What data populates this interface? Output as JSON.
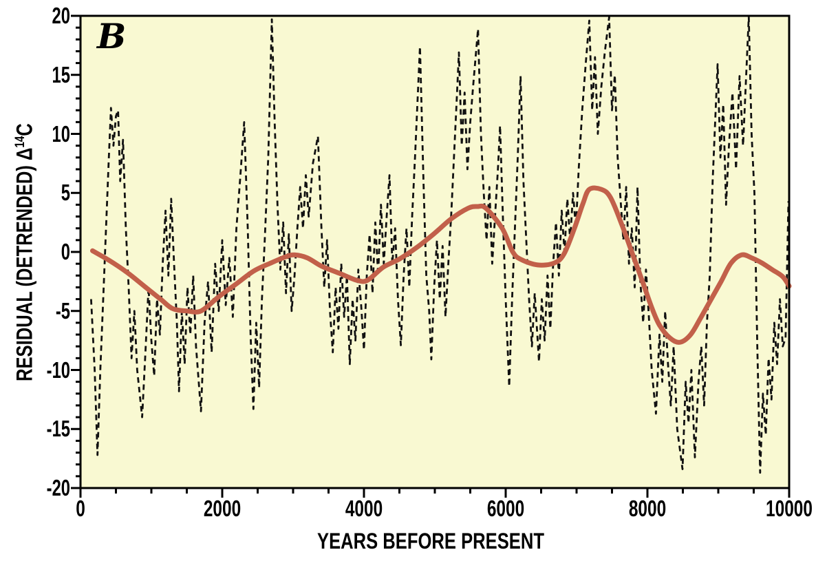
{
  "panel_label": "B",
  "axes": {
    "x_title": "YEARS BEFORE PRESENT",
    "y_title_prefix": "RESIDUAL (DETRENDED) ",
    "y_title_delta": "Δ",
    "y_title_sup": "14",
    "y_title_suffix": "C",
    "x_tick_labels": [
      "0",
      "2000",
      "4000",
      "6000",
      "8000",
      "10000"
    ],
    "y_tick_labels": [
      "-20",
      "-15",
      "-10",
      "-5",
      "0",
      "5",
      "10",
      "15",
      "20"
    ]
  },
  "colors": {
    "plot_background": "#f9f9d2",
    "frame": "#000000",
    "dashed_series": "#111111",
    "trend_series": "#c2604a",
    "text": "#000000",
    "page_background": "#ffffff"
  },
  "chart_data": {
    "type": "line",
    "title": "",
    "xlabel": "YEARS BEFORE PRESENT",
    "ylabel": "RESIDUAL (DETRENDED) Δ14C",
    "xlim": [
      0,
      10000
    ],
    "ylim": [
      -20,
      20
    ],
    "x_major_step": 2000,
    "x_minor_step": 500,
    "y_major_step": 5,
    "y_minor_step": 1,
    "grid": false,
    "legend": "none",
    "series": [
      {
        "name": "residual detrended Delta-14C (dashed)",
        "style": "dashed",
        "color": "#111111",
        "points": [
          [
            150,
            -4
          ],
          [
            200,
            -10
          ],
          [
            240,
            -17.2
          ],
          [
            280,
            -10
          ],
          [
            320,
            -4
          ],
          [
            360,
            2
          ],
          [
            400,
            8
          ],
          [
            430,
            12.2
          ],
          [
            465,
            9
          ],
          [
            500,
            11.5
          ],
          [
            530,
            12
          ],
          [
            560,
            6
          ],
          [
            600,
            9.5
          ],
          [
            640,
            2
          ],
          [
            680,
            -3
          ],
          [
            720,
            -9
          ],
          [
            760,
            -5
          ],
          [
            800,
            -10
          ],
          [
            870,
            -14
          ],
          [
            920,
            -8
          ],
          [
            960,
            -3
          ],
          [
            1000,
            -7.5
          ],
          [
            1040,
            -10.5
          ],
          [
            1080,
            -4
          ],
          [
            1120,
            -7
          ],
          [
            1160,
            -1
          ],
          [
            1200,
            3.5
          ],
          [
            1240,
            -2
          ],
          [
            1280,
            4.5
          ],
          [
            1320,
            -1
          ],
          [
            1360,
            -6
          ],
          [
            1390,
            -11.8
          ],
          [
            1430,
            -5
          ],
          [
            1470,
            -9.5
          ],
          [
            1510,
            -3
          ],
          [
            1550,
            -7
          ],
          [
            1590,
            -2
          ],
          [
            1630,
            -8
          ],
          [
            1700,
            -13.5
          ],
          [
            1750,
            -6
          ],
          [
            1800,
            -2.5
          ],
          [
            1850,
            -8.5
          ],
          [
            1900,
            -1
          ],
          [
            1950,
            -5
          ],
          [
            2000,
            1
          ],
          [
            2050,
            -4.5
          ],
          [
            2100,
            -0.5
          ],
          [
            2150,
            -5.5
          ],
          [
            2200,
            2
          ],
          [
            2250,
            6
          ],
          [
            2310,
            11
          ],
          [
            2360,
            2
          ],
          [
            2400,
            -7
          ],
          [
            2440,
            -13.3
          ],
          [
            2480,
            -6
          ],
          [
            2520,
            -11.5
          ],
          [
            2560,
            -4
          ],
          [
            2600,
            1
          ],
          [
            2650,
            8
          ],
          [
            2700,
            19.7
          ],
          [
            2740,
            11
          ],
          [
            2780,
            4
          ],
          [
            2820,
            -1.5
          ],
          [
            2860,
            2.5
          ],
          [
            2900,
            -3.5
          ],
          [
            2940,
            1.5
          ],
          [
            2980,
            -5
          ],
          [
            3020,
            -2
          ],
          [
            3060,
            2
          ],
          [
            3100,
            5.5
          ],
          [
            3140,
            2
          ],
          [
            3180,
            6.5
          ],
          [
            3220,
            3
          ],
          [
            3280,
            7.5
          ],
          [
            3350,
            9.8
          ],
          [
            3400,
            2
          ],
          [
            3440,
            -3
          ],
          [
            3480,
            1
          ],
          [
            3520,
            -5
          ],
          [
            3560,
            -8.5
          ],
          [
            3600,
            -3
          ],
          [
            3640,
            -6.5
          ],
          [
            3680,
            -1
          ],
          [
            3720,
            -5.5
          ],
          [
            3760,
            -2
          ],
          [
            3800,
            -9.5
          ],
          [
            3840,
            -4
          ],
          [
            3880,
            -7.5
          ],
          [
            3920,
            -1.5
          ],
          [
            3960,
            -4.5
          ],
          [
            4000,
            -8.3
          ],
          [
            4040,
            -2
          ],
          [
            4080,
            1.5
          ],
          [
            4120,
            -3.5
          ],
          [
            4160,
            2.5
          ],
          [
            4200,
            -2
          ],
          [
            4240,
            4
          ],
          [
            4280,
            -1
          ],
          [
            4320,
            3
          ],
          [
            4360,
            6.5
          ],
          [
            4400,
            -1
          ],
          [
            4440,
            2
          ],
          [
            4480,
            -4
          ],
          [
            4520,
            -7.9
          ],
          [
            4560,
            -2
          ],
          [
            4600,
            2
          ],
          [
            4640,
            -3
          ],
          [
            4680,
            3
          ],
          [
            4720,
            8
          ],
          [
            4790,
            17.4
          ],
          [
            4840,
            6
          ],
          [
            4880,
            -2
          ],
          [
            4920,
            -5
          ],
          [
            4950,
            -9.1
          ],
          [
            4990,
            -3
          ],
          [
            5030,
            1
          ],
          [
            5070,
            -4
          ],
          [
            5110,
            0.5
          ],
          [
            5150,
            -5.5
          ],
          [
            5190,
            -1
          ],
          [
            5230,
            3
          ],
          [
            5270,
            8
          ],
          [
            5310,
            13
          ],
          [
            5340,
            16.9
          ],
          [
            5380,
            9
          ],
          [
            5420,
            13.5
          ],
          [
            5460,
            7
          ],
          [
            5500,
            11
          ],
          [
            5540,
            14
          ],
          [
            5610,
            18.9
          ],
          [
            5650,
            10
          ],
          [
            5690,
            5
          ],
          [
            5730,
            1
          ],
          [
            5770,
            5.5
          ],
          [
            5810,
            -1
          ],
          [
            5850,
            3
          ],
          [
            5890,
            7
          ],
          [
            5920,
            10.7
          ],
          [
            5960,
            3
          ],
          [
            6000,
            -4
          ],
          [
            6050,
            -11.4
          ],
          [
            6090,
            -4
          ],
          [
            6130,
            2
          ],
          [
            6170,
            8
          ],
          [
            6210,
            14.9
          ],
          [
            6250,
            6
          ],
          [
            6290,
            1
          ],
          [
            6330,
            -4
          ],
          [
            6370,
            -8
          ],
          [
            6410,
            -3.5
          ],
          [
            6470,
            -9.3
          ],
          [
            6510,
            -4
          ],
          [
            6550,
            -7.5
          ],
          [
            6590,
            -2
          ],
          [
            6630,
            -6.5
          ],
          [
            6670,
            -1
          ],
          [
            6710,
            2.5
          ],
          [
            6750,
            -2
          ],
          [
            6790,
            3.5
          ],
          [
            6830,
            0
          ],
          [
            6870,
            4.5
          ],
          [
            6910,
            1
          ],
          [
            6950,
            5
          ],
          [
            6990,
            2
          ],
          [
            7030,
            7
          ],
          [
            7080,
            12
          ],
          [
            7130,
            16
          ],
          [
            7180,
            19.6
          ],
          [
            7220,
            12
          ],
          [
            7260,
            16.5
          ],
          [
            7300,
            10
          ],
          [
            7350,
            14
          ],
          [
            7400,
            17
          ],
          [
            7460,
            19.9
          ],
          [
            7500,
            12
          ],
          [
            7540,
            15
          ],
          [
            7580,
            8
          ],
          [
            7620,
            4.5
          ],
          [
            7660,
            1
          ],
          [
            7700,
            5.5
          ],
          [
            7740,
            -1
          ],
          [
            7780,
            2
          ],
          [
            7820,
            -3
          ],
          [
            7860,
            5.5
          ],
          [
            7900,
            -2.5
          ],
          [
            7940,
            -6
          ],
          [
            7980,
            -1.5
          ],
          [
            8020,
            -5.5
          ],
          [
            8060,
            -10
          ],
          [
            8120,
            -13.7
          ],
          [
            8170,
            -7
          ],
          [
            8210,
            -11
          ],
          [
            8250,
            -5
          ],
          [
            8290,
            -9.5
          ],
          [
            8330,
            -13
          ],
          [
            8370,
            -8
          ],
          [
            8420,
            -15
          ],
          [
            8495,
            -18.4
          ],
          [
            8540,
            -11
          ],
          [
            8580,
            -14.5
          ],
          [
            8620,
            -10
          ],
          [
            8670,
            -17.4
          ],
          [
            8720,
            -11
          ],
          [
            8760,
            -8
          ],
          [
            8800,
            -13
          ],
          [
            8840,
            -6
          ],
          [
            8880,
            -2
          ],
          [
            8920,
            6
          ],
          [
            8990,
            15.9
          ],
          [
            9030,
            8
          ],
          [
            9070,
            12.5
          ],
          [
            9110,
            4
          ],
          [
            9150,
            9
          ],
          [
            9200,
            13.5
          ],
          [
            9250,
            7
          ],
          [
            9300,
            14.9
          ],
          [
            9350,
            9
          ],
          [
            9430,
            19.9
          ],
          [
            9470,
            10
          ],
          [
            9510,
            5
          ],
          [
            9550,
            -8
          ],
          [
            9590,
            -18.7
          ],
          [
            9630,
            -12
          ],
          [
            9670,
            -15.5
          ],
          [
            9710,
            -9
          ],
          [
            9750,
            -12.5
          ],
          [
            9790,
            -6
          ],
          [
            9830,
            -9.5
          ],
          [
            9870,
            -4
          ],
          [
            9910,
            -8
          ],
          [
            9950,
            -7.3
          ],
          [
            9990,
            4.3
          ]
        ]
      },
      {
        "name": "smoothed long-term trend (solid)",
        "style": "solid",
        "color": "#c2604a",
        "points": [
          [
            170,
            0.1
          ],
          [
            400,
            -0.7
          ],
          [
            650,
            -1.7
          ],
          [
            900,
            -2.9
          ],
          [
            1130,
            -4.0
          ],
          [
            1300,
            -4.8
          ],
          [
            1500,
            -5.0
          ],
          [
            1700,
            -5.0
          ],
          [
            1950,
            -3.8
          ],
          [
            2200,
            -2.7
          ],
          [
            2450,
            -1.6
          ],
          [
            2700,
            -0.9
          ],
          [
            2900,
            -0.4
          ],
          [
            3020,
            -0.25
          ],
          [
            3200,
            -0.5
          ],
          [
            3400,
            -1.2
          ],
          [
            3650,
            -1.8
          ],
          [
            3900,
            -2.4
          ],
          [
            4050,
            -2.4
          ],
          [
            4270,
            -1.3
          ],
          [
            4500,
            -0.6
          ],
          [
            4750,
            0.4
          ],
          [
            5000,
            1.6
          ],
          [
            5230,
            2.8
          ],
          [
            5470,
            3.7
          ],
          [
            5600,
            3.85
          ],
          [
            5720,
            3.7
          ],
          [
            5950,
            2.0
          ],
          [
            6100,
            0.0
          ],
          [
            6220,
            -0.65
          ],
          [
            6450,
            -1.1
          ],
          [
            6680,
            -0.95
          ],
          [
            6820,
            -0.2
          ],
          [
            6970,
            2.0
          ],
          [
            7090,
            4.1
          ],
          [
            7180,
            5.3
          ],
          [
            7350,
            5.3
          ],
          [
            7480,
            4.6
          ],
          [
            7640,
            2.3
          ],
          [
            7800,
            -0.35
          ],
          [
            7930,
            -2.5
          ],
          [
            8060,
            -4.7
          ],
          [
            8170,
            -6.2
          ],
          [
            8320,
            -7.3
          ],
          [
            8460,
            -7.65
          ],
          [
            8610,
            -7.0
          ],
          [
            8750,
            -5.6
          ],
          [
            8900,
            -4.0
          ],
          [
            9040,
            -2.5
          ],
          [
            9180,
            -0.95
          ],
          [
            9330,
            -0.25
          ],
          [
            9470,
            -0.5
          ],
          [
            9620,
            -0.95
          ],
          [
            9760,
            -1.5
          ],
          [
            9910,
            -2.1
          ],
          [
            10000,
            -2.9
          ]
        ]
      }
    ]
  }
}
